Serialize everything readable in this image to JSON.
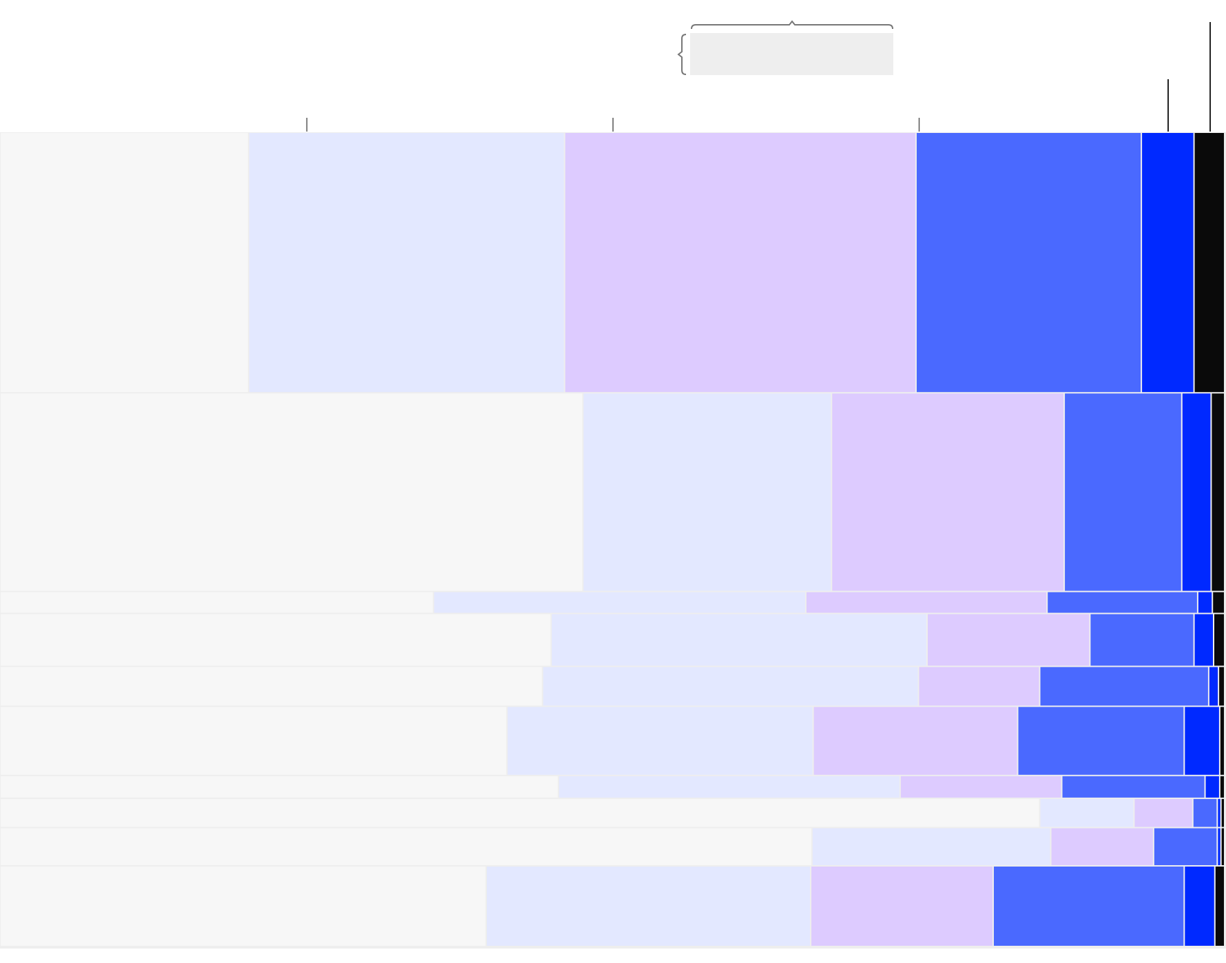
{
  "chart_data": {
    "type": "mosaic",
    "title": "",
    "xlabel": "",
    "ylabel": "",
    "units": "percent",
    "colors": [
      "#f7f7f7",
      "#e3e8ff",
      "#ddcbff",
      "#4a69ff",
      "#0029ff",
      "#0a0a0a"
    ],
    "row_shares": [
      32.0,
      24.4,
      2.7,
      6.5,
      4.9,
      8.5,
      2.8,
      3.6,
      4.7,
      9.9
    ],
    "rows": [
      [
        20.3,
        25.8,
        28.7,
        18.4,
        4.3,
        2.5
      ],
      [
        47.6,
        20.3,
        19.0,
        9.6,
        2.4,
        1.1
      ],
      [
        35.4,
        30.4,
        19.7,
        12.3,
        1.2,
        1.0
      ],
      [
        45.0,
        30.7,
        13.3,
        8.5,
        1.6,
        0.9
      ],
      [
        44.3,
        30.7,
        9.9,
        13.8,
        0.8,
        0.5
      ],
      [
        41.4,
        25.0,
        16.7,
        13.6,
        2.9,
        0.4
      ],
      [
        45.6,
        27.9,
        13.2,
        11.7,
        1.2,
        0.4
      ],
      [
        84.9,
        7.7,
        4.8,
        2.0,
        0.3,
        0.3
      ],
      [
        66.3,
        19.5,
        8.4,
        5.2,
        0.3,
        0.3
      ],
      [
        39.7,
        26.5,
        14.9,
        15.6,
        2.5,
        0.8
      ]
    ],
    "x_ticks": [
      25,
      50,
      75
    ],
    "grid": false,
    "legend": "none"
  }
}
